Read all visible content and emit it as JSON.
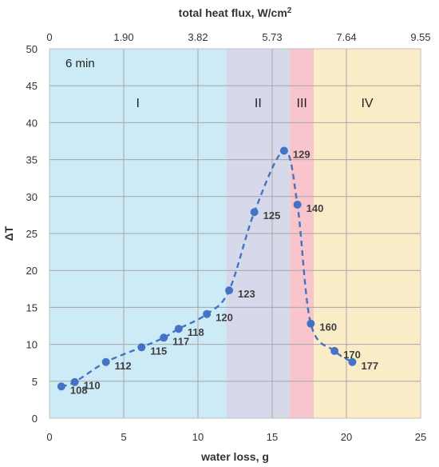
{
  "chart_data": {
    "type": "scatter",
    "xlabel": "water loss, g",
    "ylabel": "ΔT",
    "top_axis_label": "total heat flux, W/cm²",
    "xlim": [
      0,
      25
    ],
    "ylim": [
      0,
      50
    ],
    "x_ticks": [
      "0",
      "5",
      "10",
      "15",
      "20",
      "25"
    ],
    "y_ticks": [
      "0",
      "5",
      "10",
      "15",
      "20",
      "25",
      "30",
      "35",
      "40",
      "45",
      "50"
    ],
    "top_ticks": [
      "0",
      "1.90",
      "3.82",
      "5.73",
      "7.64",
      "9.55"
    ],
    "grid": true,
    "annotation": "6 min",
    "regions": [
      {
        "label": "I",
        "x_range": [
          0,
          11.9
        ],
        "color": "#cdeaf7"
      },
      {
        "label": "II",
        "x_range": [
          11.9,
          16.2
        ],
        "color": "#d6d9ea"
      },
      {
        "label": "III",
        "x_range": [
          16.2,
          17.8
        ],
        "color": "#f7c5cb"
      },
      {
        "label": "IV",
        "x_range": [
          17.8,
          25
        ],
        "color": "#fbecc8"
      }
    ],
    "series": [
      {
        "x": [
          0.8,
          1.7,
          3.8,
          6.2,
          7.7,
          8.7,
          10.6,
          12.1,
          13.8,
          15.8,
          16.7,
          17.6,
          19.2,
          20.4
        ],
        "y": [
          4.3,
          4.9,
          7.6,
          9.6,
          10.9,
          12.1,
          14.1,
          17.3,
          27.9,
          36.2,
          28.9,
          12.8,
          9.1,
          7.6
        ],
        "labels": [
          "108",
          "110",
          "112",
          "115",
          "117",
          "118",
          "120",
          "123",
          "125",
          "129",
          "140",
          "160",
          "170",
          "177"
        ],
        "color": "#4472c4"
      }
    ]
  }
}
